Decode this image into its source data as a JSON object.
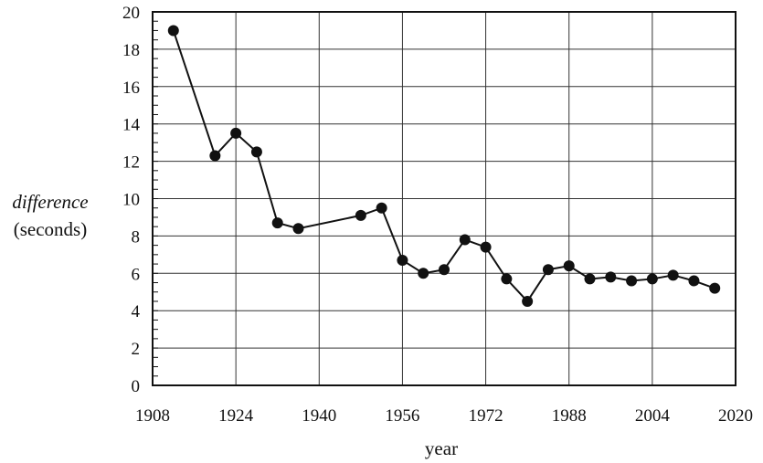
{
  "chart_data": {
    "type": "line",
    "xlabel": "year",
    "ylabel_line1": "difference",
    "ylabel_line2": "(seconds)",
    "xlim": [
      1908,
      2020
    ],
    "ylim": [
      0,
      20
    ],
    "x_ticks": [
      1908,
      1924,
      1940,
      1956,
      1972,
      1988,
      2004,
      2020
    ],
    "y_ticks": [
      0,
      2,
      4,
      6,
      8,
      10,
      12,
      14,
      16,
      18,
      20
    ],
    "y_minor_step": 0.5,
    "grid": true,
    "series": [
      {
        "x": [
          1912,
          1920,
          1924,
          1928,
          1932,
          1936,
          1948,
          1952,
          1956,
          1960,
          1964,
          1968,
          1972,
          1976,
          1980,
          1984,
          1988,
          1992,
          1996,
          2000,
          2004,
          2008,
          2012,
          2016
        ],
        "y": [
          19.0,
          12.3,
          13.5,
          12.5,
          8.7,
          8.4,
          9.1,
          9.5,
          6.7,
          6.0,
          6.2,
          7.8,
          7.4,
          5.7,
          4.5,
          6.2,
          6.4,
          5.7,
          5.8,
          5.6,
          5.7,
          5.9,
          5.6,
          5.2
        ]
      }
    ],
    "colors": {
      "line": "#111111",
      "marker": "#111111"
    }
  }
}
